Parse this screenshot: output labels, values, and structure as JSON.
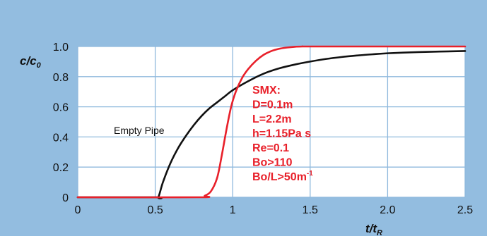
{
  "chart_data": {
    "type": "line",
    "ylabel": {
      "main": "c/c",
      "sub": "0"
    },
    "xlabel": {
      "main": "t/t",
      "sub": "R"
    },
    "xlim": [
      0,
      2.5
    ],
    "ylim": [
      0,
      1.0
    ],
    "x_ticks": [
      "0",
      "0.5",
      "1",
      "1.5",
      "2.0",
      "2.5"
    ],
    "y_ticks": [
      "0",
      "0.2",
      "0.4",
      "0.6",
      "0.8",
      "1.0"
    ],
    "grid": true,
    "colors": {
      "background": "#93bde0",
      "plot_area": "#ffffff",
      "grid": "#8fb9dd",
      "series_empty_pipe": "#111111",
      "series_smx": "#e8202a"
    },
    "series": [
      {
        "name": "Empty Pipe",
        "color": "#111111",
        "x": [
          0,
          0.5,
          0.52,
          0.55,
          0.6,
          0.65,
          0.7,
          0.75,
          0.8,
          0.85,
          0.9,
          0.95,
          1.0,
          1.1,
          1.2,
          1.3,
          1.4,
          1.5,
          1.6,
          1.7,
          1.8,
          1.9,
          2.0,
          2.2,
          2.5
        ],
        "y": [
          0,
          0,
          0.0,
          0.1,
          0.23,
          0.33,
          0.41,
          0.48,
          0.54,
          0.59,
          0.63,
          0.67,
          0.71,
          0.77,
          0.82,
          0.855,
          0.88,
          0.9,
          0.917,
          0.93,
          0.94,
          0.948,
          0.955,
          0.963,
          0.97
        ]
      },
      {
        "name": "SMX",
        "color": "#e8202a",
        "x": [
          0,
          0.78,
          0.82,
          0.86,
          0.9,
          0.93,
          0.96,
          0.99,
          1.02,
          1.06,
          1.1,
          1.15,
          1.2,
          1.25,
          1.3,
          1.35,
          1.4,
          1.45,
          1.5,
          2.0,
          2.5
        ],
        "y": [
          0,
          0,
          0.01,
          0.04,
          0.13,
          0.28,
          0.45,
          0.6,
          0.7,
          0.79,
          0.85,
          0.905,
          0.945,
          0.97,
          0.985,
          0.993,
          0.998,
          1.0,
          1.0,
          1.0,
          1.0
        ]
      }
    ],
    "annotations": {
      "empty_pipe_label": "Empty Pipe",
      "smx_lines": [
        "SMX:",
        "D=0.1m",
        "L=2.2m",
        "h=1.15Pa s",
        "Re=0.1",
        "Bo>110"
      ],
      "smx_last_line": {
        "main": "Bo/L>50m",
        "sup": "-1"
      }
    }
  }
}
